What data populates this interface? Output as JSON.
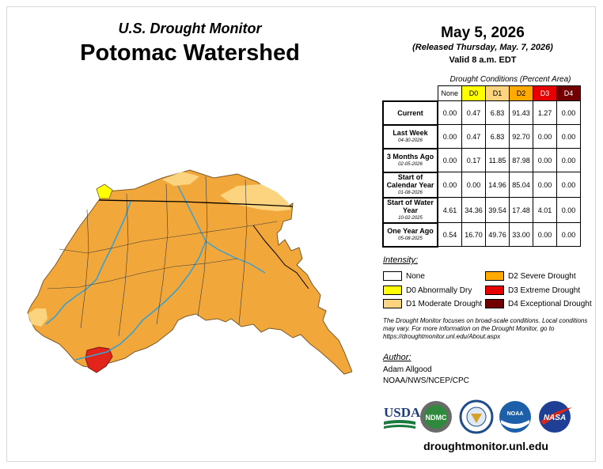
{
  "header": {
    "monitor_title": "U.S. Drought Monitor",
    "region_title": "Potomac Watershed",
    "date": "May 5, 2026",
    "released": "(Released Thursday, May. 7, 2026)",
    "valid": "Valid 8 a.m. EDT"
  },
  "table": {
    "caption": "Drought Conditions (Percent Area)",
    "columns": [
      {
        "label": "None",
        "color": "#ffffff"
      },
      {
        "label": "D0",
        "color": "#ffff00"
      },
      {
        "label": "D1",
        "color": "#fcd37f"
      },
      {
        "label": "D2",
        "color": "#ffaa00"
      },
      {
        "label": "D3",
        "color": "#e60000"
      },
      {
        "label": "D4",
        "color": "#730000"
      }
    ],
    "rows": [
      {
        "label": "Current",
        "date": "",
        "values": [
          "0.00",
          "0.47",
          "6.83",
          "91.43",
          "1.27",
          "0.00"
        ]
      },
      {
        "label": "Last Week",
        "date": "04-30-2026",
        "values": [
          "0.00",
          "0.47",
          "6.83",
          "92.70",
          "0.00",
          "0.00"
        ]
      },
      {
        "label": "3 Months Ago",
        "date": "02-05-2026",
        "values": [
          "0.00",
          "0.17",
          "11.85",
          "87.98",
          "0.00",
          "0.00"
        ]
      },
      {
        "label": "Start of Calendar Year",
        "date": "01-08-2026",
        "values": [
          "0.00",
          "0.00",
          "14.96",
          "85.04",
          "0.00",
          "0.00"
        ]
      },
      {
        "label": "Start of Water Year",
        "date": "10-02-2025",
        "values": [
          "4.61",
          "34.36",
          "39.54",
          "17.48",
          "4.01",
          "0.00"
        ]
      },
      {
        "label": "One Year Ago",
        "date": "05-08-2025",
        "values": [
          "0.54",
          "16.70",
          "49.76",
          "33.00",
          "0.00",
          "0.00"
        ]
      }
    ]
  },
  "legend": {
    "heading": "Intensity:",
    "items": [
      {
        "label": "None",
        "color": "#ffffff"
      },
      {
        "label": "D0 Abnormally Dry",
        "color": "#ffff00"
      },
      {
        "label": "D1 Moderate Drought",
        "color": "#fcd37f"
      },
      {
        "label": "D2 Severe Drought",
        "color": "#ffaa00"
      },
      {
        "label": "D3 Extreme Drought",
        "color": "#e60000"
      },
      {
        "label": "D4 Exceptional Drought",
        "color": "#730000"
      }
    ]
  },
  "note": "The Drought Monitor focuses on broad-scale conditions. Local conditions may vary. For more information on the Drought Monitor, go to https://droughtmonitor.unl.edu/About.aspx",
  "author": {
    "heading": "Author:",
    "name": "Adam Allgood",
    "org": "NOAA/NWS/NCEP/CPC"
  },
  "logos": {
    "usda": "USDA",
    "ndmc": "NDMC",
    "noaa": "NOAA",
    "nasa": "NASA"
  },
  "site": "droughtmonitor.unl.edu",
  "map_colors": {
    "d0": "#ffff00",
    "d1": "#fcd37f",
    "d2": "#f2a73a",
    "d3": "#e3241b",
    "river": "#3aa0d0"
  }
}
